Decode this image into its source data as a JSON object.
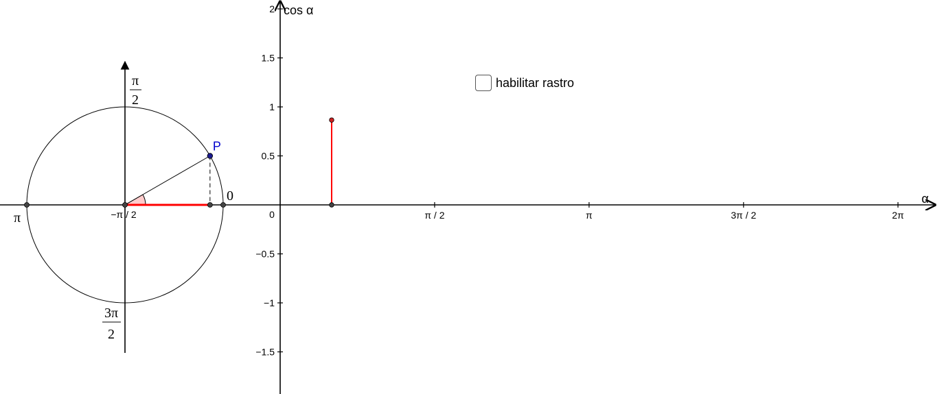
{
  "checkbox": {
    "label": "habilitar rastro",
    "checked": false
  },
  "unit_circle": {
    "angle_labels": {
      "zero": "0",
      "pi": "π",
      "half_pi_num": "π",
      "half_pi_den": "2",
      "three_half_pi_num": "3π",
      "three_half_pi_den": "2",
      "center_label": "−π / 2"
    },
    "point_label": "P",
    "angle_rad": 0.5236,
    "cos_value": 0.866,
    "sin_value": 0.5
  },
  "graph": {
    "x_axis_label": "α",
    "y_axis_label": "cos α",
    "origin_label": "0",
    "x_ticks": [
      {
        "value": 1.5708,
        "label": "π / 2"
      },
      {
        "value": 3.1416,
        "label": "π"
      },
      {
        "value": 4.7124,
        "label": "3π / 2"
      },
      {
        "value": 6.2832,
        "label": "2π"
      }
    ],
    "y_ticks": [
      {
        "value": 2,
        "label": "2"
      },
      {
        "value": 1.5,
        "label": "1.5"
      },
      {
        "value": 1,
        "label": "1"
      },
      {
        "value": 0.5,
        "label": "0.5"
      },
      {
        "value": -0.5,
        "label": "−0.5"
      },
      {
        "value": -1,
        "label": "−1"
      },
      {
        "value": -1.5,
        "label": "−1.5"
      }
    ],
    "segment": {
      "x": 0.5236,
      "y": 0.866
    }
  },
  "colors": {
    "axis": "#000000",
    "circle": "#000000",
    "segment": "#ff0000",
    "point": "#444444",
    "point_p": "#1a1a8f",
    "label_p": "#0000cc",
    "angle_fill": "#ffcccc",
    "red_point": "#cc2222"
  }
}
